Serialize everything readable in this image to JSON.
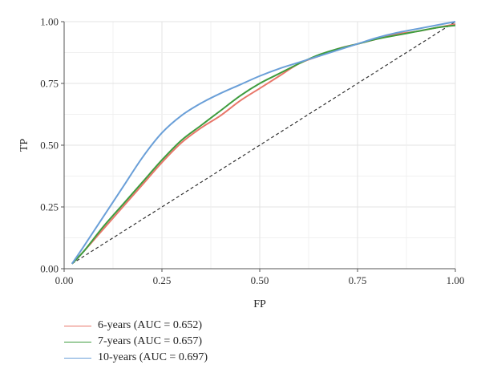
{
  "chart_data": {
    "type": "line",
    "title": "",
    "xlabel": "FP",
    "ylabel": "TP",
    "xlim": [
      0,
      1
    ],
    "ylim": [
      0,
      1
    ],
    "x_ticks": [
      "0.00",
      "0.25",
      "0.50",
      "0.75",
      "1.00"
    ],
    "y_ticks": [
      "0.00",
      "0.25",
      "0.50",
      "0.75",
      "1.00"
    ],
    "grid": true,
    "legend_position": "bottom-left",
    "reference_line": {
      "style": "dashed",
      "color": "#333333",
      "points": [
        [
          0.02,
          0.02
        ],
        [
          1.0,
          1.0
        ]
      ]
    },
    "series": [
      {
        "name": "6-years (AUC = 0.652)",
        "color": "#e8776a",
        "points": [
          [
            0.02,
            0.02
          ],
          [
            0.05,
            0.07
          ],
          [
            0.1,
            0.16
          ],
          [
            0.15,
            0.25
          ],
          [
            0.2,
            0.34
          ],
          [
            0.25,
            0.43
          ],
          [
            0.3,
            0.51
          ],
          [
            0.35,
            0.57
          ],
          [
            0.4,
            0.62
          ],
          [
            0.45,
            0.68
          ],
          [
            0.5,
            0.73
          ],
          [
            0.55,
            0.78
          ],
          [
            0.6,
            0.83
          ],
          [
            0.65,
            0.86
          ],
          [
            0.7,
            0.89
          ],
          [
            0.75,
            0.91
          ],
          [
            0.8,
            0.93
          ],
          [
            0.85,
            0.95
          ],
          [
            0.9,
            0.96
          ],
          [
            0.95,
            0.975
          ],
          [
            1.0,
            0.99
          ]
        ]
      },
      {
        "name": "7-years (AUC = 0.657)",
        "color": "#3e9c3e",
        "points": [
          [
            0.02,
            0.02
          ],
          [
            0.05,
            0.07
          ],
          [
            0.1,
            0.17
          ],
          [
            0.15,
            0.26
          ],
          [
            0.2,
            0.35
          ],
          [
            0.25,
            0.44
          ],
          [
            0.3,
            0.52
          ],
          [
            0.35,
            0.58
          ],
          [
            0.4,
            0.64
          ],
          [
            0.45,
            0.7
          ],
          [
            0.5,
            0.75
          ],
          [
            0.55,
            0.79
          ],
          [
            0.6,
            0.83
          ],
          [
            0.65,
            0.865
          ],
          [
            0.7,
            0.89
          ],
          [
            0.75,
            0.91
          ],
          [
            0.8,
            0.93
          ],
          [
            0.85,
            0.945
          ],
          [
            0.9,
            0.96
          ],
          [
            0.95,
            0.975
          ],
          [
            1.0,
            0.985
          ]
        ]
      },
      {
        "name": "10-years (AUC = 0.697)",
        "color": "#6a9fd8",
        "points": [
          [
            0.02,
            0.02
          ],
          [
            0.05,
            0.09
          ],
          [
            0.1,
            0.21
          ],
          [
            0.15,
            0.33
          ],
          [
            0.2,
            0.45
          ],
          [
            0.25,
            0.55
          ],
          [
            0.3,
            0.62
          ],
          [
            0.35,
            0.67
          ],
          [
            0.4,
            0.71
          ],
          [
            0.45,
            0.745
          ],
          [
            0.5,
            0.78
          ],
          [
            0.55,
            0.81
          ],
          [
            0.6,
            0.835
          ],
          [
            0.65,
            0.86
          ],
          [
            0.7,
            0.885
          ],
          [
            0.75,
            0.91
          ],
          [
            0.8,
            0.935
          ],
          [
            0.85,
            0.955
          ],
          [
            0.9,
            0.97
          ],
          [
            0.95,
            0.985
          ],
          [
            1.0,
            1.0
          ]
        ]
      }
    ]
  }
}
